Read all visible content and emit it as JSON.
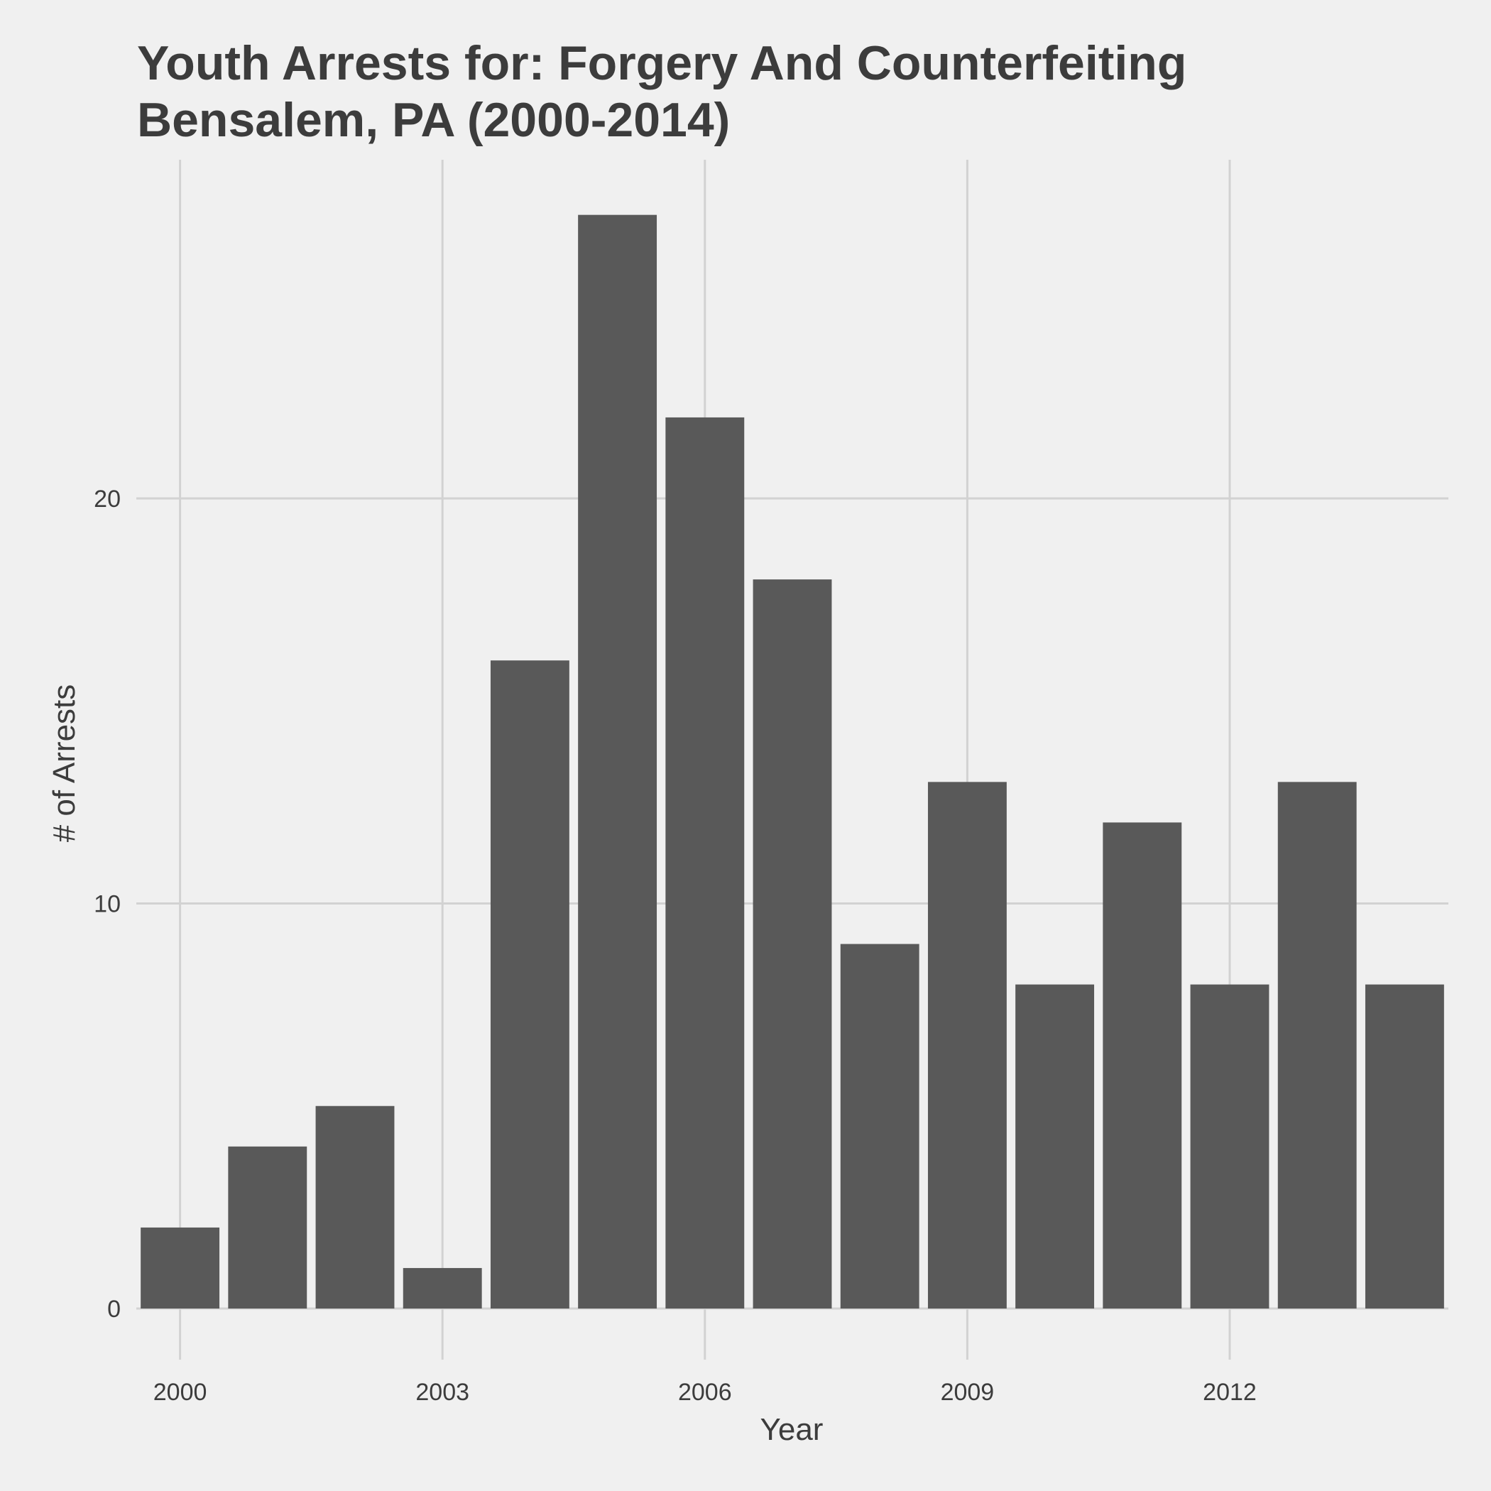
{
  "chart_data": {
    "type": "bar",
    "title_lines": [
      "Youth Arrests for: Forgery And Counterfeiting",
      "Bensalem, PA (2000-2014)"
    ],
    "xlabel": "Year",
    "ylabel": "# of Arrests",
    "categories": [
      2000,
      2001,
      2002,
      2003,
      2004,
      2005,
      2006,
      2007,
      2008,
      2009,
      2010,
      2011,
      2012,
      2013,
      2014
    ],
    "values": [
      2,
      4,
      5,
      1,
      16,
      27,
      22,
      18,
      9,
      13,
      8,
      12,
      8,
      13,
      8
    ],
    "x_ticks": [
      2000,
      2003,
      2006,
      2009,
      2012
    ],
    "y_ticks": [
      0,
      10,
      20
    ],
    "ylim": [
      0,
      28
    ],
    "grid": true,
    "colors": {
      "background": "#f0f0f0",
      "bar": "#595959",
      "grid": "#d2d2d2",
      "text": "#3c3c3c"
    }
  }
}
